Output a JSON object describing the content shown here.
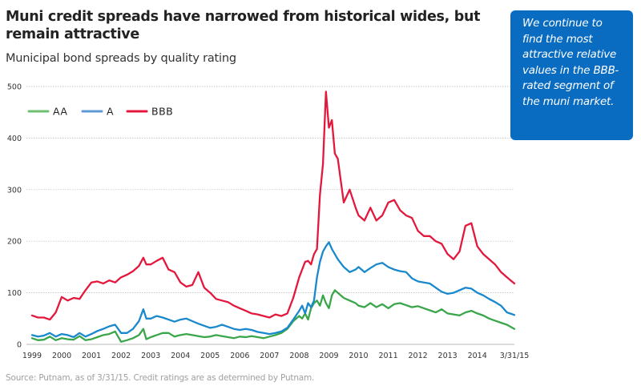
{
  "header": {
    "title": "Muni credit spreads have narrowed from historical wides, but remain attractive",
    "subtitle": "Municipal bond spreads by quality rating"
  },
  "callout": {
    "text": "We continue to find the most attractive relative values in the BBB-rated segment of the muni market."
  },
  "footer": {
    "source": "Source: Putnam, as of 3/31/15. Credit ratings are as determined by Putnam."
  },
  "chart_data": {
    "type": "line",
    "title": "Municipal bond spreads by quality rating",
    "xlabel": "",
    "ylabel": "",
    "ylim": [
      0,
      500
    ],
    "xlim": [
      1999.0,
      2015.25
    ],
    "yticks": [
      0,
      100,
      200,
      300,
      400,
      500
    ],
    "xtick_labels": [
      {
        "x": 1999,
        "label": "1999"
      },
      {
        "x": 2000,
        "label": "2000"
      },
      {
        "x": 2001,
        "label": "2001"
      },
      {
        "x": 2002,
        "label": "2002"
      },
      {
        "x": 2003,
        "label": "2003"
      },
      {
        "x": 2004,
        "label": "2004"
      },
      {
        "x": 2005,
        "label": "2005"
      },
      {
        "x": 2006,
        "label": "2006"
      },
      {
        "x": 2007,
        "label": "2007"
      },
      {
        "x": 2008,
        "label": "2008"
      },
      {
        "x": 2009,
        "label": "2009"
      },
      {
        "x": 2010,
        "label": "2010"
      },
      {
        "x": 2011,
        "label": "2011"
      },
      {
        "x": 2012,
        "label": "2012"
      },
      {
        "x": 2013,
        "label": "2013"
      },
      {
        "x": 2014,
        "label": "2014"
      },
      {
        "x": 2015.25,
        "label": "3/31/15"
      }
    ],
    "grid": true,
    "legend": "top-left",
    "series": [
      {
        "name": "AA",
        "color": "#3aa64a",
        "x": [
          1999.0,
          1999.2,
          1999.4,
          1999.6,
          1999.8,
          2000.0,
          2000.2,
          2000.4,
          2000.6,
          2000.8,
          2001.0,
          2001.2,
          2001.4,
          2001.6,
          2001.8,
          2002.0,
          2002.2,
          2002.4,
          2002.6,
          2002.75,
          2002.85,
          2003.0,
          2003.2,
          2003.4,
          2003.6,
          2003.8,
          2004.0,
          2004.2,
          2004.4,
          2004.6,
          2004.8,
          2005.0,
          2005.2,
          2005.4,
          2005.6,
          2005.8,
          2006.0,
          2006.2,
          2006.4,
          2006.6,
          2006.8,
          2007.0,
          2007.2,
          2007.4,
          2007.6,
          2007.8,
          2008.0,
          2008.1,
          2008.2,
          2008.3,
          2008.4,
          2008.5,
          2008.6,
          2008.7,
          2008.8,
          2008.9,
          2009.0,
          2009.1,
          2009.2,
          2009.3,
          2009.5,
          2009.7,
          2009.9,
          2010.0,
          2010.2,
          2010.4,
          2010.6,
          2010.8,
          2011.0,
          2011.2,
          2011.4,
          2011.6,
          2011.8,
          2012.0,
          2012.2,
          2012.4,
          2012.6,
          2012.8,
          2013.0,
          2013.2,
          2013.4,
          2013.6,
          2013.8,
          2014.0,
          2014.2,
          2014.4,
          2014.6,
          2014.8,
          2015.0,
          2015.25
        ],
        "values": [
          12,
          8,
          9,
          15,
          8,
          12,
          10,
          9,
          16,
          8,
          10,
          14,
          18,
          20,
          25,
          5,
          8,
          12,
          18,
          30,
          10,
          14,
          18,
          22,
          22,
          15,
          18,
          20,
          18,
          16,
          14,
          15,
          18,
          16,
          14,
          12,
          15,
          14,
          16,
          14,
          12,
          15,
          18,
          22,
          30,
          45,
          55,
          50,
          60,
          48,
          70,
          80,
          85,
          75,
          95,
          80,
          70,
          95,
          105,
          100,
          90,
          85,
          80,
          75,
          72,
          80,
          72,
          78,
          70,
          78,
          80,
          76,
          72,
          74,
          70,
          66,
          62,
          68,
          60,
          58,
          56,
          62,
          65,
          60,
          56,
          50,
          46,
          42,
          38,
          30
        ]
      },
      {
        "name": "A",
        "color": "#1a88cc",
        "x": [
          1999.0,
          1999.2,
          1999.4,
          1999.6,
          1999.8,
          2000.0,
          2000.2,
          2000.4,
          2000.6,
          2000.8,
          2001.0,
          2001.2,
          2001.4,
          2001.6,
          2001.8,
          2002.0,
          2002.2,
          2002.4,
          2002.6,
          2002.75,
          2002.85,
          2003.0,
          2003.2,
          2003.4,
          2003.6,
          2003.8,
          2004.0,
          2004.2,
          2004.4,
          2004.6,
          2004.8,
          2005.0,
          2005.2,
          2005.4,
          2005.6,
          2005.8,
          2006.0,
          2006.2,
          2006.4,
          2006.6,
          2006.8,
          2007.0,
          2007.2,
          2007.4,
          2007.6,
          2007.8,
          2008.0,
          2008.1,
          2008.2,
          2008.3,
          2008.4,
          2008.5,
          2008.6,
          2008.7,
          2008.8,
          2008.9,
          2009.0,
          2009.1,
          2009.2,
          2009.3,
          2009.5,
          2009.7,
          2009.9,
          2010.0,
          2010.2,
          2010.4,
          2010.6,
          2010.8,
          2011.0,
          2011.2,
          2011.4,
          2011.6,
          2011.8,
          2012.0,
          2012.2,
          2012.4,
          2012.6,
          2012.8,
          2013.0,
          2013.2,
          2013.4,
          2013.6,
          2013.8,
          2014.0,
          2014.2,
          2014.4,
          2014.6,
          2014.8,
          2015.0,
          2015.25
        ],
        "values": [
          18,
          15,
          17,
          22,
          15,
          20,
          18,
          14,
          22,
          15,
          20,
          26,
          30,
          35,
          38,
          22,
          22,
          30,
          45,
          68,
          50,
          50,
          55,
          52,
          48,
          44,
          48,
          50,
          45,
          40,
          36,
          32,
          34,
          38,
          34,
          30,
          28,
          30,
          28,
          24,
          22,
          20,
          22,
          25,
          32,
          48,
          65,
          75,
          60,
          80,
          72,
          85,
          130,
          160,
          180,
          190,
          198,
          185,
          175,
          165,
          150,
          140,
          145,
          150,
          140,
          148,
          155,
          158,
          150,
          145,
          142,
          140,
          128,
          122,
          120,
          118,
          110,
          102,
          98,
          100,
          105,
          110,
          108,
          100,
          95,
          88,
          82,
          75,
          62,
          57
        ]
      },
      {
        "name": "BBB",
        "color": "#e4183c",
        "x": [
          1999.0,
          1999.2,
          1999.4,
          1999.6,
          1999.8,
          2000.0,
          2000.2,
          2000.4,
          2000.6,
          2000.8,
          2001.0,
          2001.2,
          2001.4,
          2001.6,
          2001.8,
          2002.0,
          2002.2,
          2002.4,
          2002.6,
          2002.75,
          2002.85,
          2003.0,
          2003.2,
          2003.4,
          2003.6,
          2003.8,
          2004.0,
          2004.2,
          2004.4,
          2004.6,
          2004.8,
          2005.0,
          2005.2,
          2005.4,
          2005.6,
          2005.8,
          2006.0,
          2006.2,
          2006.4,
          2006.6,
          2006.8,
          2007.0,
          2007.2,
          2007.4,
          2007.6,
          2007.8,
          2008.0,
          2008.1,
          2008.2,
          2008.3,
          2008.4,
          2008.5,
          2008.6,
          2008.7,
          2008.8,
          2008.9,
          2009.0,
          2009.1,
          2009.2,
          2009.3,
          2009.5,
          2009.7,
          2009.9,
          2010.0,
          2010.2,
          2010.4,
          2010.6,
          2010.8,
          2011.0,
          2011.2,
          2011.4,
          2011.6,
          2011.8,
          2012.0,
          2012.2,
          2012.4,
          2012.6,
          2012.8,
          2013.0,
          2013.2,
          2013.4,
          2013.6,
          2013.8,
          2014.0,
          2014.2,
          2014.4,
          2014.6,
          2014.8,
          2015.0,
          2015.25
        ],
        "values": [
          56,
          52,
          52,
          48,
          62,
          92,
          85,
          90,
          88,
          105,
          120,
          122,
          118,
          124,
          120,
          130,
          135,
          142,
          152,
          168,
          155,
          155,
          162,
          168,
          145,
          140,
          120,
          112,
          115,
          140,
          110,
          100,
          88,
          85,
          82,
          75,
          70,
          65,
          60,
          58,
          55,
          52,
          58,
          55,
          60,
          90,
          130,
          145,
          160,
          162,
          155,
          175,
          185,
          290,
          350,
          490,
          420,
          435,
          370,
          360,
          275,
          300,
          265,
          250,
          240,
          265,
          240,
          250,
          275,
          280,
          260,
          250,
          245,
          220,
          210,
          210,
          200,
          195,
          175,
          165,
          180,
          230,
          235,
          190,
          175,
          165,
          155,
          140,
          130,
          118
        ]
      }
    ]
  }
}
